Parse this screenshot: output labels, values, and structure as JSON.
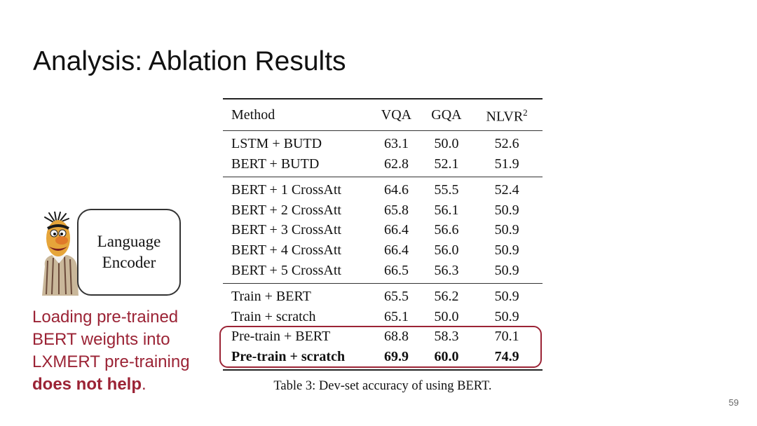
{
  "slide": {
    "title": "Analysis: Ablation Results",
    "page_number": "59"
  },
  "figure": {
    "encoder_line1": "Language",
    "encoder_line2": "Encoder",
    "character_icon": "bert-character-icon"
  },
  "callout": {
    "text": "Loading pre-trained BERT weights into LXMERT pre-training ",
    "emphasis": "does not help",
    "suffix": ".",
    "color": "#9b2335"
  },
  "table": {
    "headers": {
      "method": "Method",
      "vqa": "VQA",
      "gqa": "GQA",
      "nlvr": "NLVR",
      "nlvr_sup": "2"
    },
    "groups": [
      {
        "rows": [
          {
            "method": "LSTM + BUTD",
            "vqa": "63.1",
            "gqa": "50.0",
            "nlvr": "52.6"
          },
          {
            "method": "BERT + BUTD",
            "vqa": "62.8",
            "gqa": "52.1",
            "nlvr": "51.9"
          }
        ]
      },
      {
        "rows": [
          {
            "method": "BERT + 1 CrossAtt",
            "vqa": "64.6",
            "gqa": "55.5",
            "nlvr": "52.4"
          },
          {
            "method": "BERT + 2 CrossAtt",
            "vqa": "65.8",
            "gqa": "56.1",
            "nlvr": "50.9"
          },
          {
            "method": "BERT + 3 CrossAtt",
            "vqa": "66.4",
            "gqa": "56.6",
            "nlvr": "50.9"
          },
          {
            "method": "BERT + 4 CrossAtt",
            "vqa": "66.4",
            "gqa": "56.0",
            "nlvr": "50.9"
          },
          {
            "method": "BERT + 5 CrossAtt",
            "vqa": "66.5",
            "gqa": "56.3",
            "nlvr": "50.9"
          }
        ]
      },
      {
        "rows": [
          {
            "method": "Train + BERT",
            "vqa": "65.5",
            "gqa": "56.2",
            "nlvr": "50.9"
          },
          {
            "method": "Train + scratch",
            "vqa": "65.1",
            "gqa": "50.0",
            "nlvr": "50.9"
          },
          {
            "method": "Pre-train + BERT",
            "vqa": "68.8",
            "gqa": "58.3",
            "nlvr": "70.1"
          },
          {
            "method": "Pre-train + scratch",
            "vqa": "69.9",
            "gqa": "60.0",
            "nlvr": "74.9",
            "bold": true
          }
        ]
      }
    ],
    "caption": "Table 3: Dev-set accuracy of using BERT.",
    "highlight_color": "#9b2335"
  }
}
